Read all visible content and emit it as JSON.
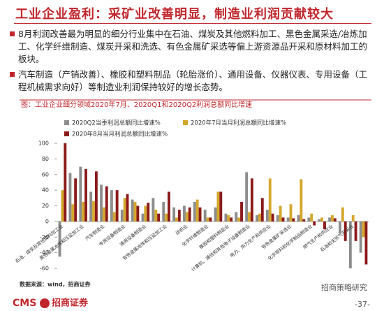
{
  "header": {
    "title": "工业企业盈利：采矿业改善明显，制造业利润贡献较大"
  },
  "paragraphs": [
    "8月利润改善最为明显的细分行业集中在石油、煤炭及其他燃料加工、黑色金属采选/冶炼加工、化学纤维制造、煤炭开采和洗选、有色金属矿采选等偏上游资源品开采和原材料加工的板块。",
    "汽车制造（产销改善）、橡胶和塑料制品（轮胎涨价）、通用设备、仪器仪表、专用设备（工程机械需求向好）等制造业利润保持较好的增长态势。"
  ],
  "chart_data": {
    "type": "bar",
    "title": "图：工业企业细分领域2020年7月、2020Q1和2020Q2利润总额同比增速",
    "categories": [
      "石油、煤炭及其他燃料加工业",
      null,
      "黑色金属冶炼和压延加工业",
      null,
      "汽车制造业",
      null,
      "专用设备制造业",
      null,
      "通用设备制造业",
      null,
      "有色金属冶炼和压延加工业",
      null,
      "纺织业",
      null,
      "化学纤维制造业",
      null,
      "橡胶和塑料制品业",
      null,
      "计算机、通信和其他电子设备制造业",
      null,
      "电力、热力生产和供应业",
      null,
      "有色金属矿采选业",
      null,
      "化学原料和化学制品制造业",
      null,
      "燃气生产和供应业",
      null,
      "石油和天然气开采业",
      null
    ],
    "series": [
      {
        "name": "2020Q2当季利润总额同比增速%",
        "color": "#8c8c8c",
        "values": [
          -45,
          62,
          70,
          38,
          47,
          40,
          15,
          28,
          10,
          30,
          25,
          18,
          20,
          25,
          15,
          18,
          10,
          12,
          63,
          8,
          15,
          8,
          5,
          8,
          5,
          3,
          5,
          -15,
          -60,
          -40
        ]
      },
      {
        "name": "2020年7月当月利润总额同比增速%",
        "color": "#d4a72c",
        "values": [
          40,
          22,
          25,
          26,
          18,
          12,
          30,
          25,
          20,
          15,
          10,
          5,
          12,
          28,
          5,
          38,
          8,
          5,
          12,
          10,
          55,
          20,
          22,
          54,
          10,
          5,
          8,
          18,
          8,
          -20
        ]
      },
      {
        "name": "2020年8月当月利润总额同比增速%",
        "color": "#8b1a1a",
        "values": [
          100,
          55,
          67,
          64,
          45,
          40,
          35,
          20,
          24,
          10,
          38,
          15,
          18,
          18,
          5,
          38,
          5,
          25,
          55,
          30,
          10,
          5,
          4,
          3,
          -5,
          -10,
          4,
          -25,
          -25,
          -55
        ]
      }
    ],
    "ylim": [
      -60,
      100
    ],
    "yticks": [
      -60,
      -40,
      -20,
      0,
      20,
      40,
      60,
      80,
      100
    ],
    "grid": false
  },
  "source": "数据来源：wind，招商证券",
  "footer": {
    "logo": "CMS",
    "company": "招商证券",
    "account": "招商策略研究",
    "page": "-37-"
  }
}
